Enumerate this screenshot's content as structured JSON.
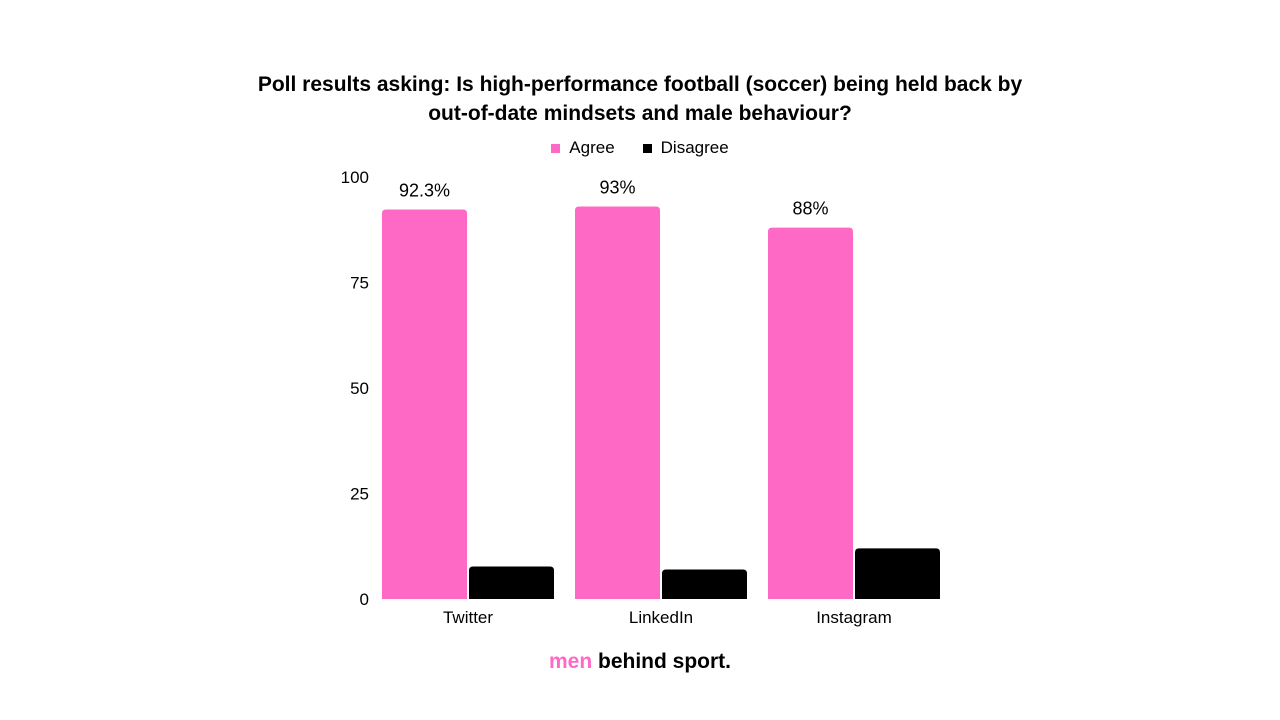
{
  "title": {
    "line1": "Poll results asking:  Is high-performance football (soccer) being held back by",
    "line2": "out-of-date mindsets and male behaviour?"
  },
  "colors": {
    "agree": "#ff69c6",
    "disagree": "#000000"
  },
  "chart_data": {
    "type": "bar",
    "categories": [
      "Twitter",
      "LinkedIn",
      "Instagram"
    ],
    "series": [
      {
        "name": "Agree",
        "values": [
          92.3,
          93,
          88
        ]
      },
      {
        "name": "Disagree",
        "values": [
          7.7,
          7,
          12
        ]
      }
    ],
    "data_labels": [
      "92.3%",
      "93%",
      "88%"
    ],
    "ylim": [
      0,
      100
    ],
    "yticks": [
      0,
      25,
      50,
      75,
      100
    ],
    "legend_position": "top-center",
    "grid": false
  },
  "brand": {
    "accent": "men",
    "rest": " behind sport."
  }
}
